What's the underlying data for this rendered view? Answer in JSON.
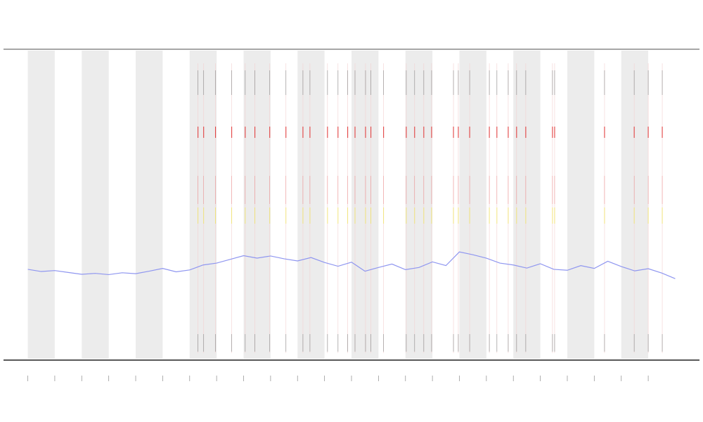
{
  "chart_data": {
    "type": "line",
    "x": [
      0,
      0.5,
      1,
      1.5,
      2,
      2.5,
      3,
      3.5,
      4,
      4.5,
      5,
      5.5,
      6,
      6.5,
      7,
      7.5,
      8,
      8.5,
      9,
      9.5,
      10,
      10.5,
      11,
      11.5,
      12,
      12.5,
      13,
      13.5,
      14,
      14.5,
      15,
      15.5,
      16,
      16.5,
      17,
      17.5,
      18,
      18.5,
      19,
      19.5,
      20,
      20.5,
      21,
      21.5,
      22,
      22.5,
      23,
      23.5,
      24
    ],
    "values": [
      29.2,
      28.5,
      28.8,
      28.2,
      27.6,
      27.9,
      27.5,
      28.1,
      27.8,
      28.6,
      29.5,
      28.4,
      29.0,
      30.6,
      31.2,
      32.4,
      33.6,
      32.8,
      33.5,
      32.6,
      31.9,
      33.0,
      31.4,
      30.2,
      31.5,
      28.6,
      29.8,
      30.9,
      29.1,
      29.8,
      31.6,
      30.4,
      34.8,
      33.9,
      32.8,
      31.2,
      30.6,
      29.6,
      31.0,
      29.2,
      28.9,
      30.4,
      29.5,
      31.8,
      30.1,
      28.7,
      29.4,
      28.0,
      26.2
    ],
    "color": "#8f96f0",
    "events": [
      6.31,
      6.52,
      6.96,
      7.56,
      8.06,
      8.42,
      8.97,
      9.57,
      10.2,
      10.46,
      11.11,
      11.5,
      11.86,
      12.13,
      12.52,
      12.72,
      13.19,
      14.03,
      14.34,
      14.68,
      14.97,
      15.78,
      15.96,
      16.38,
      17.11,
      17.39,
      17.81,
      18.12,
      18.46,
      19.45,
      19.53,
      21.38,
      22.48,
      23.0,
      23.52
    ],
    "event_color": "#e03030",
    "bands": [
      [
        0,
        1
      ],
      [
        2,
        3
      ],
      [
        4,
        5
      ],
      [
        6,
        7
      ],
      [
        8,
        9
      ],
      [
        10,
        11
      ],
      [
        12,
        13
      ],
      [
        14,
        15
      ],
      [
        16,
        17
      ],
      [
        18,
        19
      ],
      [
        20,
        21
      ],
      [
        22,
        23
      ]
    ],
    "xlim": [
      -0.9,
      24.9
    ],
    "ylim": [
      0,
      100
    ],
    "xticks": [
      0,
      1,
      2,
      3,
      4,
      5,
      6,
      7,
      8,
      9,
      10,
      11,
      12,
      13,
      14,
      15,
      16,
      17,
      18,
      19,
      20,
      21,
      22,
      23
    ]
  }
}
